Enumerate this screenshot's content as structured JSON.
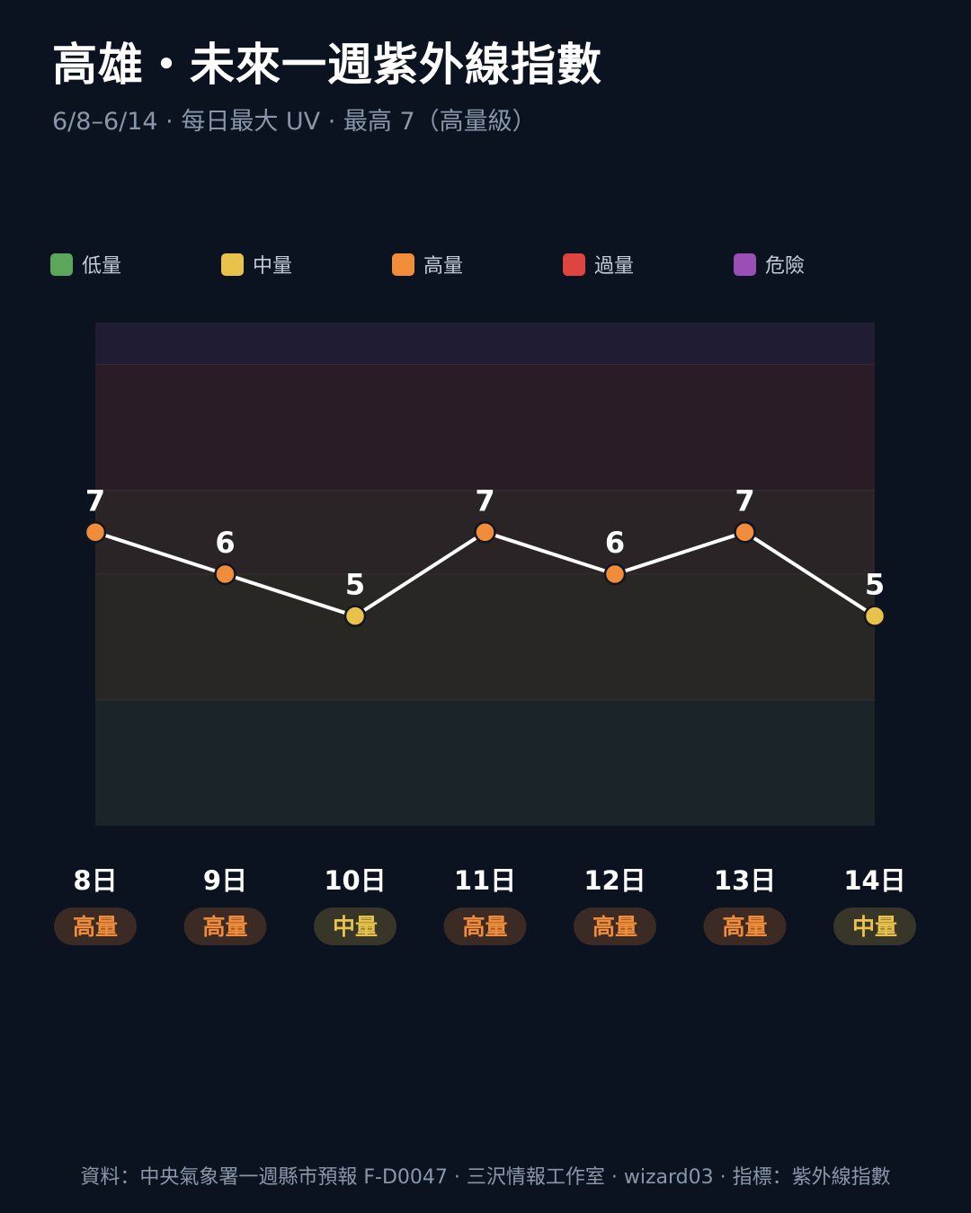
{
  "header": {
    "title": "高雄・未來一週紫外線指數",
    "subtitle": "6/8–6/14 · 每日最大 UV · 最高 7（高量級）"
  },
  "legend": [
    {
      "label": "低量",
      "color": "#5ba65b"
    },
    {
      "label": "中量",
      "color": "#e8c24a"
    },
    {
      "label": "高量",
      "color": "#f08c3a"
    },
    {
      "label": "過量",
      "color": "#e0443e"
    },
    {
      "label": "危險",
      "color": "#9b4fb5"
    }
  ],
  "chart_data": {
    "type": "line",
    "x": [
      "8日",
      "9日",
      "10日",
      "11日",
      "12日",
      "13日",
      "14日"
    ],
    "series": [
      {
        "values": [
          7,
          6,
          5,
          7,
          6,
          7,
          5
        ]
      }
    ],
    "levels": [
      "高量",
      "高量",
      "中量",
      "高量",
      "高量",
      "高量",
      "中量"
    ],
    "ylim": [
      0,
      12
    ],
    "bands": [
      {
        "from": 0,
        "to": 3,
        "level": "低量",
        "color": "#1a2529"
      },
      {
        "from": 3,
        "to": 6,
        "level": "中量",
        "color": "#292724"
      },
      {
        "from": 6,
        "to": 8,
        "level": "高量",
        "color": "#2b2426"
      },
      {
        "from": 8,
        "to": 11,
        "level": "過量",
        "color": "#291c26"
      },
      {
        "from": 11,
        "to": 12,
        "level": "危險",
        "color": "#1f1c33"
      }
    ],
    "level_colors": {
      "中量": {
        "text": "#e8c24a",
        "bg": "#383628",
        "point": "#e8c24a"
      },
      "高量": {
        "text": "#f08c3a",
        "bg": "#3c2a24",
        "point": "#f08c3a"
      }
    },
    "line_color": "#ffffff",
    "grid": false
  },
  "footer": {
    "text": "資料：中央氣象署一週縣市預報 F-D0047 · 三沢情報工作室 · wizard03 · 指標：紫外線指數"
  }
}
